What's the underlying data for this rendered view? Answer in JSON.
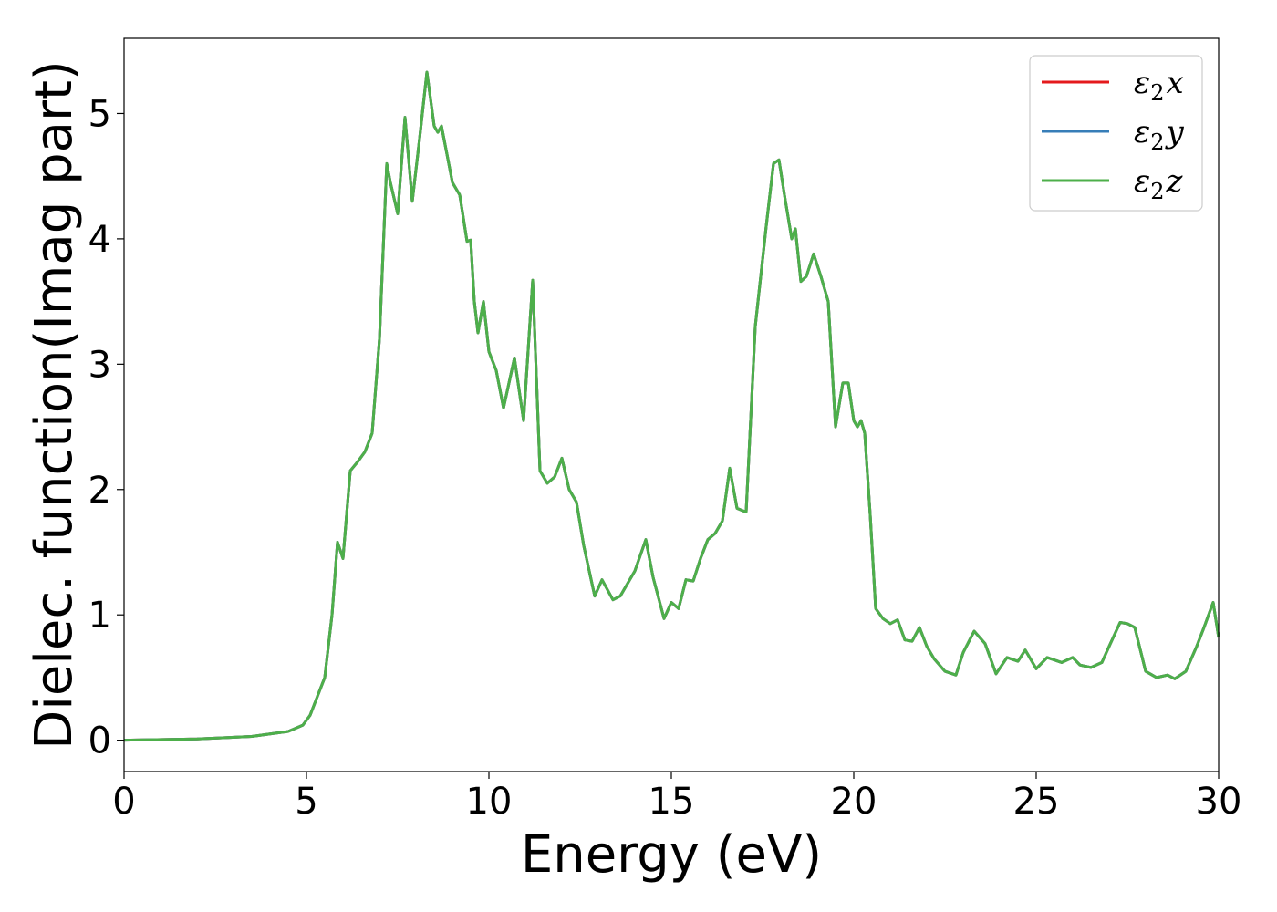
{
  "chart_data": {
    "type": "line",
    "title": "",
    "xlabel": "Energy (eV)",
    "ylabel": "Dielec. function(Imag part)",
    "xlim": [
      0,
      30
    ],
    "ylim": [
      -0.25,
      5.6
    ],
    "xticks": [
      0,
      5,
      10,
      15,
      20,
      25,
      30
    ],
    "yticks": [
      0,
      1,
      2,
      3,
      4,
      5
    ],
    "grid": false,
    "legend_position": "top-right",
    "series": [
      {
        "name": "ε2x",
        "symbol": "ε",
        "subscript": "2",
        "suffix": "x",
        "color": "#e41a1c",
        "x": [
          0,
          2,
          3.5,
          4.5,
          4.9,
          5.1,
          5.3,
          5.5,
          5.7,
          5.85,
          6.0,
          6.2,
          6.4,
          6.6,
          6.8,
          7.0,
          7.2,
          7.3,
          7.5,
          7.7,
          7.9,
          8.1,
          8.3,
          8.5,
          8.6,
          8.7,
          8.8,
          9.0,
          9.2,
          9.4,
          9.5,
          9.6,
          9.7,
          9.85,
          10.0,
          10.2,
          10.4,
          10.7,
          10.95,
          11.2,
          11.4,
          11.6,
          11.8,
          12.0,
          12.2,
          12.4,
          12.6,
          12.9,
          13.1,
          13.4,
          13.6,
          14.0,
          14.3,
          14.5,
          14.8,
          15.0,
          15.2,
          15.4,
          15.6,
          15.8,
          16.0,
          16.2,
          16.4,
          16.6,
          16.8,
          17.05,
          17.3,
          17.6,
          17.8,
          17.95,
          18.1,
          18.3,
          18.4,
          18.55,
          18.7,
          18.9,
          19.1,
          19.3,
          19.5,
          19.7,
          19.85,
          20.0,
          20.1,
          20.2,
          20.3,
          20.45,
          20.6,
          20.8,
          21.0,
          21.2,
          21.4,
          21.6,
          21.8,
          22.0,
          22.2,
          22.5,
          22.8,
          23.0,
          23.3,
          23.6,
          23.9,
          24.2,
          24.5,
          24.7,
          25.0,
          25.3,
          25.7,
          26.0,
          26.2,
          26.5,
          26.8,
          27.0,
          27.3,
          27.5,
          27.7,
          28.0,
          28.3,
          28.6,
          28.8,
          29.1,
          29.4,
          29.6,
          29.85,
          30.0
        ],
        "y": [
          0.0,
          0.01,
          0.03,
          0.07,
          0.12,
          0.2,
          0.35,
          0.5,
          1.0,
          1.58,
          1.45,
          2.15,
          2.22,
          2.3,
          2.45,
          3.2,
          4.6,
          4.45,
          4.2,
          4.97,
          4.3,
          4.8,
          5.33,
          4.9,
          4.85,
          4.9,
          4.75,
          4.45,
          4.35,
          3.98,
          3.99,
          3.5,
          3.25,
          3.5,
          3.1,
          2.95,
          2.65,
          3.05,
          2.55,
          3.67,
          2.15,
          2.05,
          2.1,
          2.25,
          2.0,
          1.9,
          1.55,
          1.15,
          1.28,
          1.12,
          1.15,
          1.35,
          1.6,
          1.3,
          0.97,
          1.1,
          1.05,
          1.28,
          1.27,
          1.45,
          1.6,
          1.65,
          1.75,
          2.17,
          1.85,
          1.82,
          3.3,
          4.1,
          4.6,
          4.63,
          4.35,
          4.0,
          4.08,
          3.66,
          3.7,
          3.88,
          3.7,
          3.5,
          2.5,
          2.85,
          2.85,
          2.55,
          2.5,
          2.55,
          2.45,
          1.8,
          1.05,
          0.97,
          0.93,
          0.96,
          0.8,
          0.79,
          0.9,
          0.75,
          0.65,
          0.55,
          0.52,
          0.7,
          0.87,
          0.77,
          0.53,
          0.66,
          0.63,
          0.72,
          0.57,
          0.66,
          0.62,
          0.66,
          0.6,
          0.58,
          0.62,
          0.75,
          0.94,
          0.93,
          0.9,
          0.55,
          0.5,
          0.52,
          0.49,
          0.55,
          0.75,
          0.9,
          1.1,
          0.82
        ]
      },
      {
        "name": "ε2y",
        "symbol": "ε",
        "subscript": "2",
        "suffix": "y",
        "color": "#377eb8",
        "same_as": "ε2x"
      },
      {
        "name": "ε2z",
        "symbol": "ε",
        "subscript": "2",
        "suffix": "z",
        "color": "#4daf4a",
        "same_as": "ε2x"
      }
    ]
  }
}
